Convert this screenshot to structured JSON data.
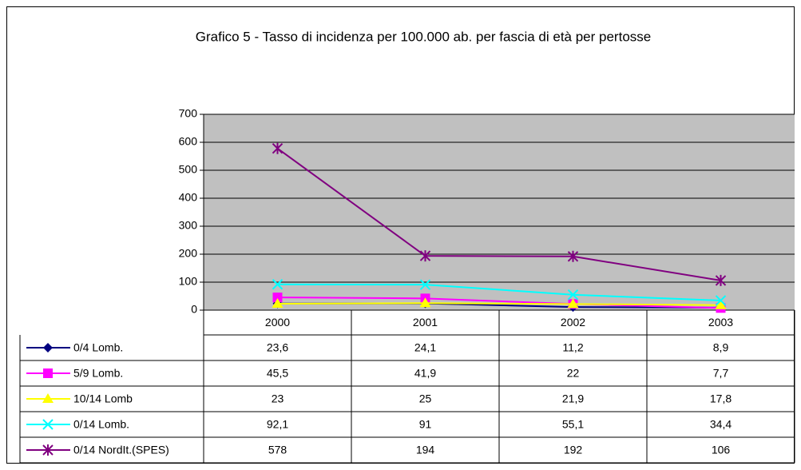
{
  "chart_data": {
    "type": "line",
    "title": "Grafico 5 - Tasso di incidenza per 100.000 ab. per fascia di età per pertosse",
    "categories": [
      "2000",
      "2001",
      "2002",
      "2003"
    ],
    "ylim": [
      0,
      700
    ],
    "yticks": [
      0,
      100,
      200,
      300,
      400,
      500,
      600,
      700
    ],
    "grid": true,
    "series": [
      {
        "name": "0/4 Lomb.",
        "color": "#000080",
        "marker": "diamond",
        "values": [
          23.6,
          24.1,
          11.2,
          8.9
        ],
        "value_labels": [
          "23,6",
          "24,1",
          "11,2",
          "8,9"
        ]
      },
      {
        "name": "5/9 Lomb.",
        "color": "#ff00ff",
        "marker": "square",
        "values": [
          45.5,
          41.9,
          22,
          7.7
        ],
        "value_labels": [
          "45,5",
          "41,9",
          "22",
          "7,7"
        ]
      },
      {
        "name": "10/14 Lomb",
        "color": "#ffff00",
        "marker": "triangle",
        "values": [
          23,
          25,
          21.9,
          17.8
        ],
        "value_labels": [
          "23",
          "25",
          "21,9",
          "17,8"
        ]
      },
      {
        "name": "0/14 Lomb.",
        "color": "#00ffff",
        "marker": "x",
        "values": [
          92.1,
          91,
          55.1,
          34.4
        ],
        "value_labels": [
          "92,1",
          "91",
          "55,1",
          "34,4"
        ]
      },
      {
        "name": "0/14 NordIt.(SPES)",
        "color": "#800080",
        "marker": "star",
        "values": [
          578,
          194,
          192,
          106
        ],
        "value_labels": [
          "578",
          "194",
          "192",
          "106"
        ]
      }
    ]
  }
}
